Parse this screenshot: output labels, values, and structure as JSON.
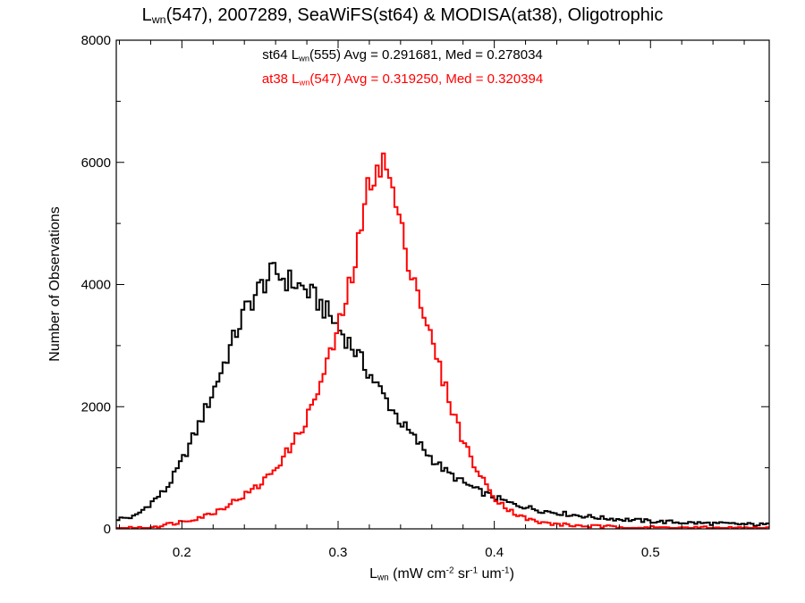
{
  "chart_data": {
    "type": "line",
    "title": {
      "prefix": "L",
      "sub": "wn",
      "suffix": "(547), 2007289, SeaWiFS(st64) & MODISA(at38), Oligotrophic"
    },
    "xlabel": {
      "prefix": "L",
      "sub": "wn",
      "suffix": " (mW cm",
      "sup1": "-2",
      "mid": " sr",
      "sup2": "-1",
      "mid2": " um",
      "sup3": "-1",
      "end": ")"
    },
    "ylabel": "Number of Observations",
    "xlim": [
      0.158,
      0.576
    ],
    "ylim": [
      0,
      8000
    ],
    "xticks": [
      0.2,
      0.3,
      0.4,
      0.5
    ],
    "xtick_labels": [
      "0.2",
      "0.3",
      "0.4",
      "0.5"
    ],
    "yticks": [
      0,
      2000,
      4000,
      6000,
      8000
    ],
    "ytick_labels": [
      "0",
      "2000",
      "4000",
      "6000",
      "8000"
    ],
    "grid": false,
    "series": [
      {
        "name": {
          "prefix": "st64 L",
          "sub": "wn",
          "suffix": "(555) Avg = 0.291681, Med = 0.278034"
        },
        "color": "#000000",
        "points": [
          [
            0.158,
            160
          ],
          [
            0.17,
            200
          ],
          [
            0.18,
            420
          ],
          [
            0.19,
            650
          ],
          [
            0.2,
            1100
          ],
          [
            0.21,
            1650
          ],
          [
            0.22,
            2250
          ],
          [
            0.23,
            2900
          ],
          [
            0.24,
            3550
          ],
          [
            0.25,
            3950
          ],
          [
            0.255,
            4100
          ],
          [
            0.26,
            4200
          ],
          [
            0.265,
            4100
          ],
          [
            0.27,
            4050
          ],
          [
            0.28,
            3900
          ],
          [
            0.29,
            3650
          ],
          [
            0.3,
            3300
          ],
          [
            0.31,
            2950
          ],
          [
            0.32,
            2550
          ],
          [
            0.33,
            2150
          ],
          [
            0.34,
            1750
          ],
          [
            0.35,
            1450
          ],
          [
            0.36,
            1150
          ],
          [
            0.37,
            920
          ],
          [
            0.38,
            760
          ],
          [
            0.39,
            620
          ],
          [
            0.4,
            520
          ],
          [
            0.41,
            420
          ],
          [
            0.42,
            360
          ],
          [
            0.43,
            300
          ],
          [
            0.45,
            230
          ],
          [
            0.47,
            175
          ],
          [
            0.5,
            125
          ],
          [
            0.53,
            95
          ],
          [
            0.56,
            75
          ],
          [
            0.576,
            65
          ]
        ]
      },
      {
        "name": {
          "prefix": "at38 L",
          "sub": "wn",
          "suffix": "(547) Avg = 0.319250, Med = 0.320394"
        },
        "color": "#ff0000",
        "points": [
          [
            0.158,
            0
          ],
          [
            0.17,
            10
          ],
          [
            0.18,
            30
          ],
          [
            0.19,
            70
          ],
          [
            0.2,
            120
          ],
          [
            0.21,
            180
          ],
          [
            0.22,
            260
          ],
          [
            0.23,
            400
          ],
          [
            0.24,
            550
          ],
          [
            0.25,
            720
          ],
          [
            0.26,
            1000
          ],
          [
            0.27,
            1350
          ],
          [
            0.28,
            1800
          ],
          [
            0.29,
            2450
          ],
          [
            0.3,
            3250
          ],
          [
            0.31,
            4250
          ],
          [
            0.315,
            4900
          ],
          [
            0.32,
            5700
          ],
          [
            0.325,
            6000
          ],
          [
            0.33,
            5950
          ],
          [
            0.335,
            5550
          ],
          [
            0.34,
            4900
          ],
          [
            0.35,
            4000
          ],
          [
            0.36,
            3050
          ],
          [
            0.37,
            2200
          ],
          [
            0.38,
            1450
          ],
          [
            0.39,
            900
          ],
          [
            0.4,
            520
          ],
          [
            0.41,
            300
          ],
          [
            0.42,
            170
          ],
          [
            0.43,
            100
          ],
          [
            0.45,
            55
          ],
          [
            0.47,
            35
          ],
          [
            0.5,
            22
          ],
          [
            0.53,
            15
          ],
          [
            0.576,
            8
          ]
        ]
      }
    ]
  }
}
